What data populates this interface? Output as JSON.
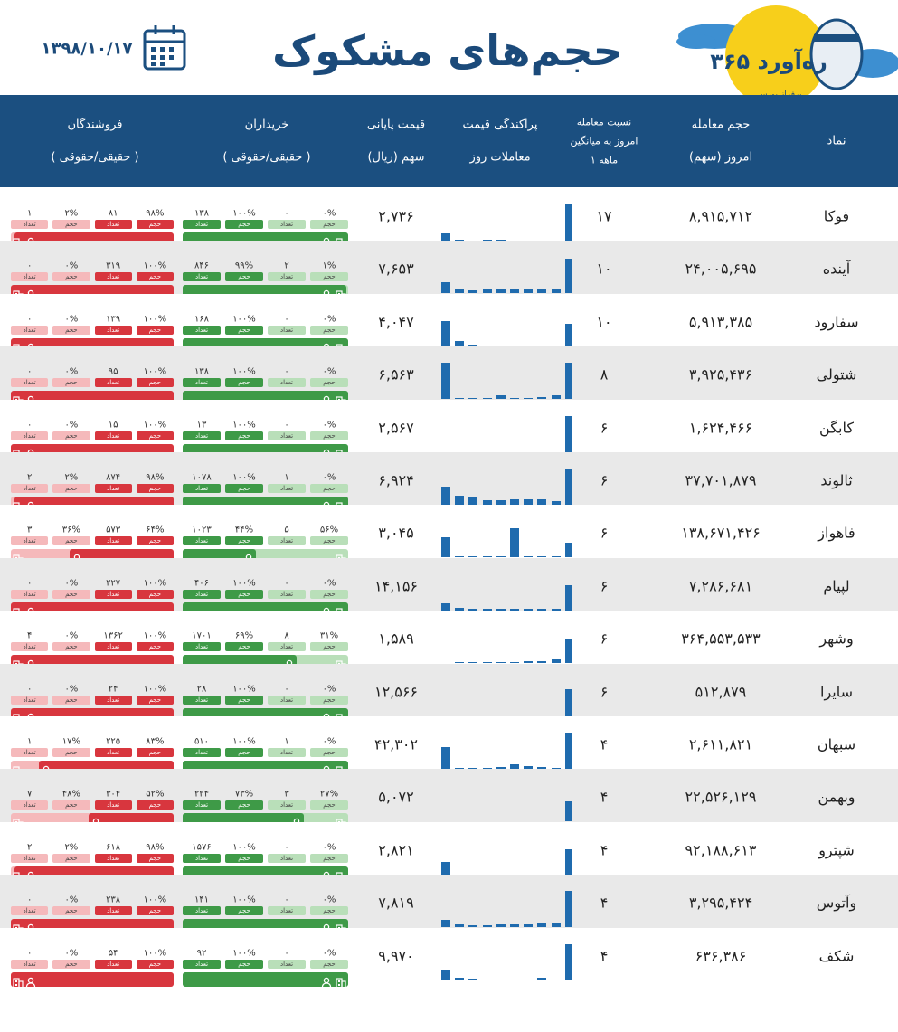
{
  "header": {
    "title": "حجم‌های مشکوک",
    "date": "۱۳۹۸/۱۰/۱۷",
    "logo_name": "۳۶۵ ره‌آورد",
    "logo_tagline": "برفراز بورس"
  },
  "columns": [
    {
      "key": "symbol",
      "lines": [
        "نماد"
      ]
    },
    {
      "key": "volume",
      "lines": [
        "حجم معامله",
        "امروز (سهم)"
      ]
    },
    {
      "key": "ratio",
      "lines": [
        "نسبت معامله",
        "امروز به میانگین",
        "۱ ماهه"
      ]
    },
    {
      "key": "distribution",
      "lines": [
        "پراکندگی قیمت",
        "معاملات روز"
      ]
    },
    {
      "key": "price",
      "lines": [
        "قیمت پایانی",
        "سهم (ریال)"
      ]
    },
    {
      "key": "buyers",
      "lines": [
        "خریداران",
        "( حقیقی/حقوقی )"
      ]
    },
    {
      "key": "sellers",
      "lines": [
        "فروشندگان",
        "( حقیقی/حقوقی )"
      ]
    }
  ],
  "labels": {
    "volume": "حجم",
    "count": "تعداد"
  },
  "rows": [
    {
      "symbol": "فوکا",
      "volume": "۸,۹۱۵,۷۱۲",
      "ratio": "۱۷",
      "price": "۲,۷۳۶",
      "distribution": [
        8,
        1,
        0,
        1,
        1,
        0,
        0,
        0,
        0,
        40
      ],
      "buyers": {
        "real_volume": "۱۰۰%",
        "real_count": "۱۳۸",
        "legal_volume": "۰%",
        "legal_count": "۰"
      },
      "sellers": {
        "real_volume": "۹۸%",
        "real_count": "۸۱",
        "legal_volume": "۲%",
        "legal_count": "۱"
      }
    },
    {
      "symbol": "آینده",
      "volume": "۲۴,۰۰۵,۶۹۵",
      "ratio": "۱۰",
      "price": "۷,۶۵۳",
      "distribution": [
        12,
        4,
        3,
        4,
        4,
        4,
        4,
        4,
        4,
        38
      ],
      "buyers": {
        "real_volume": "۹۹%",
        "real_count": "۸۴۶",
        "legal_volume": "۱%",
        "legal_count": "۲"
      },
      "sellers": {
        "real_volume": "۱۰۰%",
        "real_count": "۳۱۹",
        "legal_volume": "۰%",
        "legal_count": "۰"
      }
    },
    {
      "symbol": "سفارود",
      "volume": "۵,۹۱۳,۳۸۵",
      "ratio": "۱۰",
      "price": "۴,۰۴۷",
      "distribution": [
        28,
        6,
        2,
        1,
        1,
        0,
        0,
        0,
        0,
        25
      ],
      "buyers": {
        "real_volume": "۱۰۰%",
        "real_count": "۱۶۸",
        "legal_volume": "۰%",
        "legal_count": "۰"
      },
      "sellers": {
        "real_volume": "۱۰۰%",
        "real_count": "۱۳۹",
        "legal_volume": "۰%",
        "legal_count": "۰"
      }
    },
    {
      "symbol": "شتولی",
      "volume": "۳,۹۲۵,۴۳۶",
      "ratio": "۸",
      "price": "۶,۵۶۳",
      "distribution": [
        40,
        1,
        1,
        1,
        4,
        1,
        1,
        2,
        4,
        40
      ],
      "buyers": {
        "real_volume": "۱۰۰%",
        "real_count": "۱۳۸",
        "legal_volume": "۰%",
        "legal_count": "۰"
      },
      "sellers": {
        "real_volume": "۱۰۰%",
        "real_count": "۹۵",
        "legal_volume": "۰%",
        "legal_count": "۰"
      }
    },
    {
      "symbol": "کابگن",
      "volume": "۱,۶۲۴,۴۶۶",
      "ratio": "۶",
      "price": "۲,۵۶۷",
      "distribution": [
        0,
        0,
        0,
        0,
        0,
        0,
        0,
        0,
        0,
        40
      ],
      "buyers": {
        "real_volume": "۱۰۰%",
        "real_count": "۱۳",
        "legal_volume": "۰%",
        "legal_count": "۰"
      },
      "sellers": {
        "real_volume": "۱۰۰%",
        "real_count": "۱۵",
        "legal_volume": "۰%",
        "legal_count": "۰"
      }
    },
    {
      "symbol": "ثالوند",
      "volume": "۳۷,۷۰۱,۸۷۹",
      "ratio": "۶",
      "price": "۶,۹۲۴",
      "distribution": [
        20,
        10,
        8,
        5,
        5,
        6,
        6,
        6,
        4,
        40
      ],
      "buyers": {
        "real_volume": "۱۰۰%",
        "real_count": "۱۰۷۸",
        "legal_volume": "۰%",
        "legal_count": "۱"
      },
      "sellers": {
        "real_volume": "۹۸%",
        "real_count": "۸۷۴",
        "legal_volume": "۲%",
        "legal_count": "۲"
      }
    },
    {
      "symbol": "فاهواز",
      "volume": "۱۳۸,۶۷۱,۴۲۶",
      "ratio": "۶",
      "price": "۳,۰۴۵",
      "distribution": [
        22,
        1,
        1,
        1,
        1,
        32,
        1,
        1,
        1,
        16
      ],
      "buyers": {
        "real_volume": "۴۴%",
        "real_count": "۱۰۲۳",
        "legal_volume": "۵۶%",
        "legal_count": "۵"
      },
      "sellers": {
        "real_volume": "۶۴%",
        "real_count": "۵۷۳",
        "legal_volume": "۳۶%",
        "legal_count": "۳"
      }
    },
    {
      "symbol": "لپیام",
      "volume": "۷,۲۸۶,۶۸۱",
      "ratio": "۶",
      "price": "۱۴,۱۵۶",
      "distribution": [
        8,
        3,
        2,
        2,
        2,
        2,
        2,
        2,
        2,
        28
      ],
      "buyers": {
        "real_volume": "۱۰۰%",
        "real_count": "۴۰۶",
        "legal_volume": "۰%",
        "legal_count": "۰"
      },
      "sellers": {
        "real_volume": "۱۰۰%",
        "real_count": "۲۲۷",
        "legal_volume": "۰%",
        "legal_count": "۰"
      }
    },
    {
      "symbol": "وشهر",
      "volume": "۳۶۴,۵۵۳,۵۳۳",
      "ratio": "۶",
      "price": "۱,۵۸۹",
      "distribution": [
        0,
        1,
        1,
        1,
        1,
        1,
        2,
        2,
        4,
        26
      ],
      "buyers": {
        "real_volume": "۶۹%",
        "real_count": "۱۷۰۱",
        "legal_volume": "۳۱%",
        "legal_count": "۸"
      },
      "sellers": {
        "real_volume": "۱۰۰%",
        "real_count": "۱۳۶۲",
        "legal_volume": "۰%",
        "legal_count": "۴"
      }
    },
    {
      "symbol": "سایرا",
      "volume": "۵۱۲,۸۷۹",
      "ratio": "۶",
      "price": "۱۲,۵۶۶",
      "distribution": [
        0,
        0,
        0,
        0,
        0,
        0,
        0,
        0,
        0,
        30
      ],
      "buyers": {
        "real_volume": "۱۰۰%",
        "real_count": "۲۸",
        "legal_volume": "۰%",
        "legal_count": "۰"
      },
      "sellers": {
        "real_volume": "۱۰۰%",
        "real_count": "۲۴",
        "legal_volume": "۰%",
        "legal_count": "۰"
      }
    },
    {
      "symbol": "سبهان",
      "volume": "۲,۶۱۱,۸۲۱",
      "ratio": "۴",
      "price": "۴۲,۳۰۲",
      "distribution": [
        24,
        1,
        1,
        1,
        2,
        5,
        3,
        2,
        1,
        40
      ],
      "buyers": {
        "real_volume": "۱۰۰%",
        "real_count": "۵۱۰",
        "legal_volume": "۰%",
        "legal_count": "۱"
      },
      "sellers": {
        "real_volume": "۸۳%",
        "real_count": "۲۲۵",
        "legal_volume": "۱۷%",
        "legal_count": "۱"
      }
    },
    {
      "symbol": "وبهمن",
      "volume": "۲۲,۵۲۶,۱۲۹",
      "ratio": "۴",
      "price": "۵,۰۷۲",
      "distribution": [
        0,
        0,
        0,
        0,
        0,
        0,
        0,
        0,
        0,
        22
      ],
      "buyers": {
        "real_volume": "۷۳%",
        "real_count": "۲۲۴",
        "legal_volume": "۲۷%",
        "legal_count": "۳"
      },
      "sellers": {
        "real_volume": "۵۲%",
        "real_count": "۳۰۴",
        "legal_volume": "۴۸%",
        "legal_count": "۷"
      }
    },
    {
      "symbol": "شپترو",
      "volume": "۹۲,۱۸۸,۶۱۳",
      "ratio": "۴",
      "price": "۲,۸۲۱",
      "distribution": [
        14,
        0,
        0,
        0,
        0,
        0,
        0,
        0,
        0,
        28
      ],
      "buyers": {
        "real_volume": "۱۰۰%",
        "real_count": "۱۵۷۶",
        "legal_volume": "۰%",
        "legal_count": "۰"
      },
      "sellers": {
        "real_volume": "۹۸%",
        "real_count": "۶۱۸",
        "legal_volume": "۲%",
        "legal_count": "۲"
      }
    },
    {
      "symbol": "وآتوس",
      "volume": "۳,۲۹۵,۴۲۴",
      "ratio": "۴",
      "price": "۷,۸۱۹",
      "distribution": [
        8,
        3,
        2,
        2,
        3,
        3,
        3,
        4,
        4,
        40
      ],
      "buyers": {
        "real_volume": "۱۰۰%",
        "real_count": "۱۴۱",
        "legal_volume": "۰%",
        "legal_count": "۰"
      },
      "sellers": {
        "real_volume": "۱۰۰%",
        "real_count": "۲۳۸",
        "legal_volume": "۰%",
        "legal_count": "۰"
      }
    },
    {
      "symbol": "شکف",
      "volume": "۶۳۶,۳۸۶",
      "ratio": "۴",
      "price": "۹,۹۷۰",
      "distribution": [
        12,
        3,
        2,
        1,
        1,
        1,
        0,
        3,
        1,
        40
      ],
      "buyers": {
        "real_volume": "۱۰۰%",
        "real_count": "۹۲",
        "legal_volume": "۰%",
        "legal_count": "۰"
      },
      "sellers": {
        "real_volume": "۱۰۰%",
        "real_count": "۵۴",
        "legal_volume": "۰%",
        "legal_count": "۰"
      }
    }
  ]
}
